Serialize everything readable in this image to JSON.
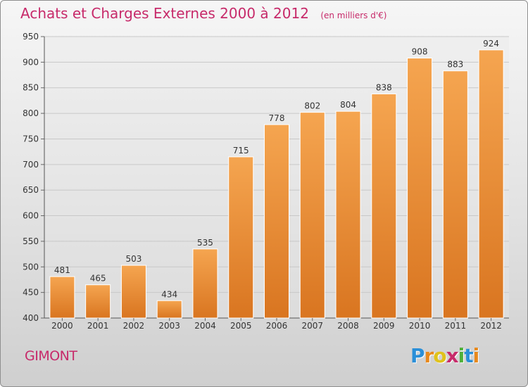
{
  "header": {
    "title": "Achats et Charges Externes 2000 à 2012",
    "unit": "(en milliers d'€)"
  },
  "footer": {
    "city": "GIMONT",
    "logo_letters": [
      "P",
      "r",
      "o",
      "x",
      "i",
      "t",
      "i"
    ],
    "logo_colors": [
      "#2a8fd8",
      "#e8891c",
      "#e0c21a",
      "#c72a6a",
      "#4fb03a",
      "#2a8fd8",
      "#e8891c"
    ]
  },
  "colors": {
    "bar_top": "#f5a550",
    "bar_bottom": "#d97520",
    "grid": "#c8c8c8",
    "axis_text": "#333333",
    "title": "#c72a6a"
  },
  "chart_data": {
    "type": "bar",
    "categories": [
      "2000",
      "2001",
      "2002",
      "2003",
      "2004",
      "2005",
      "2006",
      "2007",
      "2008",
      "2009",
      "2010",
      "2011",
      "2012"
    ],
    "values": [
      481,
      465,
      503,
      434,
      535,
      715,
      778,
      802,
      804,
      838,
      908,
      883,
      924
    ],
    "yticks": [
      400,
      450,
      500,
      550,
      600,
      650,
      700,
      750,
      800,
      850,
      900,
      950
    ],
    "ylim": [
      400,
      950
    ],
    "grid": true,
    "data_labels": true
  }
}
